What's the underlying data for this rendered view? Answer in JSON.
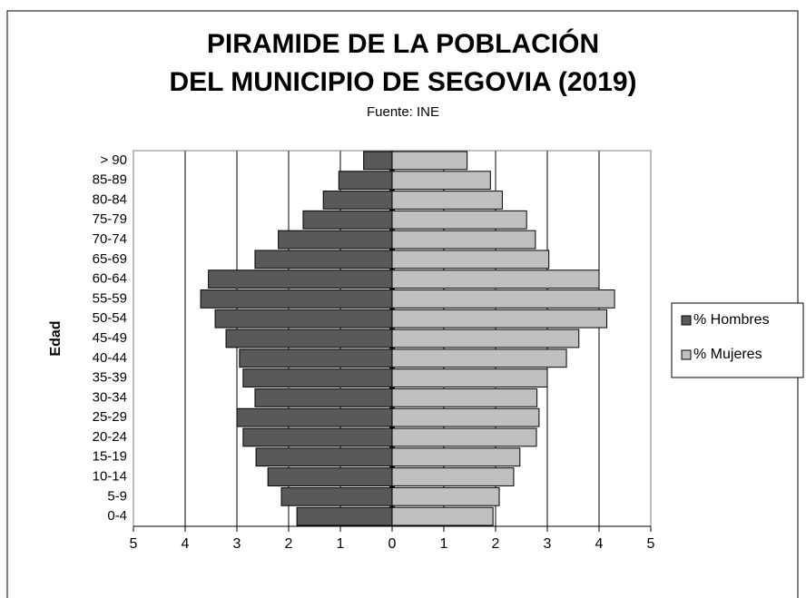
{
  "chart_data": {
    "type": "pyramid",
    "title": [
      "PIRAMIDE DE LA POBLACIÓN",
      "DEL MUNICIPIO DE SEGOVIA (2019)"
    ],
    "subtitle": "Fuente: INE",
    "ylabel": "Edad",
    "categories": [
      "> 90",
      "85-89",
      "80-84",
      "75-79",
      "70-74",
      "65-69",
      "60-64",
      "55-59",
      "50-54",
      "45-49",
      "40-44",
      "35-39",
      "30-34",
      "25-29",
      "20-24",
      "15-19",
      "10-14",
      "5-9",
      "0-4"
    ],
    "series": [
      {
        "name": "% Hombres",
        "color": "#595959",
        "values": [
          0.55,
          1.03,
          1.33,
          1.72,
          2.2,
          2.65,
          3.55,
          3.7,
          3.42,
          3.21,
          2.95,
          2.88,
          2.65,
          3.0,
          2.88,
          2.63,
          2.4,
          2.14,
          1.84
        ]
      },
      {
        "name": "% Mujeres",
        "color": "#c0c0c0",
        "values": [
          1.45,
          1.9,
          2.13,
          2.6,
          2.77,
          3.03,
          4.0,
          4.3,
          4.15,
          3.61,
          3.37,
          3.0,
          2.8,
          2.84,
          2.79,
          2.47,
          2.35,
          2.07,
          1.95
        ]
      }
    ],
    "xlim": [
      -5,
      5
    ],
    "xticks": [
      {
        "value": -5,
        "label": "5"
      },
      {
        "value": -4,
        "label": "4"
      },
      {
        "value": -3,
        "label": "3"
      },
      {
        "value": -2,
        "label": "2"
      },
      {
        "value": -1,
        "label": "1"
      },
      0,
      1,
      2,
      3,
      4,
      5
    ],
    "grid": true
  }
}
